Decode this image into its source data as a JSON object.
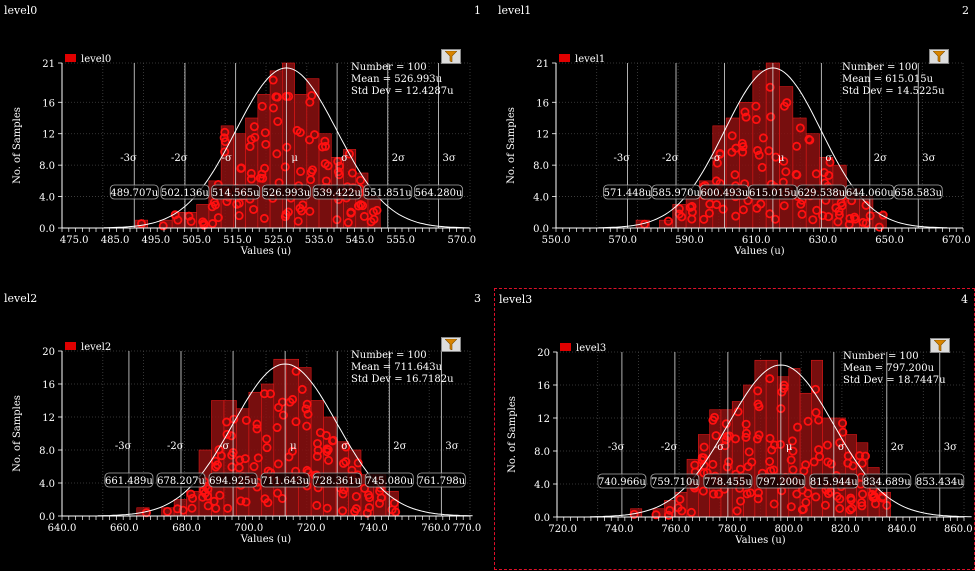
{
  "colors": {
    "background": "#000000",
    "bar_fill": "#8c1010",
    "bar_stroke": "#e01818",
    "marker": "#ff1010",
    "curve": "#ffffff",
    "legend": "#e00000",
    "selection": "#e0102a"
  },
  "panels": [
    {
      "title": "level0",
      "index": "1",
      "selected": false,
      "icon": "filter-icon"
    },
    {
      "title": "level1",
      "index": "2",
      "selected": false,
      "icon": "filter-icon"
    },
    {
      "title": "level2",
      "index": "3",
      "selected": false,
      "icon": "filter-icon"
    },
    {
      "title": "level3",
      "index": "4",
      "selected": true,
      "icon": "filter-icon"
    }
  ],
  "chart_data": [
    {
      "type": "bar",
      "title": "level0",
      "legend": "level0",
      "xlabel": "Values (u)",
      "ylabel": "No. of Samples",
      "xlim": [
        472.0,
        572.0
      ],
      "ylim": [
        0,
        21
      ],
      "xticks": [
        "475.0",
        "485.0",
        "495.0",
        "505.0",
        "515.0",
        "525.0",
        "535.0",
        "545.0",
        "555.0",
        "570.0"
      ],
      "xtick_values": [
        475,
        485,
        495,
        505,
        515,
        525,
        535,
        545,
        555,
        570
      ],
      "yticks": [
        "0.0",
        "4.0",
        "8.0",
        "12",
        "16",
        "21"
      ],
      "ytick_values": [
        0,
        4,
        8,
        12,
        16,
        21
      ],
      "stats": {
        "number": "Number = 100",
        "mean": "Mean = 526.993u",
        "std": "Std Dev = 12.4287u"
      },
      "mean": 526.993,
      "std": 12.4287,
      "sigma_labels": [
        "-3σ",
        "-2σ",
        "-σ",
        "μ",
        "σ",
        "2σ",
        "3σ"
      ],
      "sigma_values": [
        "489.707u",
        "502.136u",
        "514.565u",
        "526.993u",
        "539.422u",
        "551.851u",
        "564.280u"
      ],
      "bins": [
        {
          "x0": 490,
          "x1": 493,
          "count": 1
        },
        {
          "x0": 496,
          "x1": 499,
          "count": 1
        },
        {
          "x0": 499,
          "x1": 502,
          "count": 2
        },
        {
          "x0": 502,
          "x1": 505,
          "count": 2
        },
        {
          "x0": 505,
          "x1": 508,
          "count": 3
        },
        {
          "x0": 508,
          "x1": 511,
          "count": 6
        },
        {
          "x0": 511,
          "x1": 514,
          "count": 13
        },
        {
          "x0": 514,
          "x1": 517,
          "count": 12
        },
        {
          "x0": 517,
          "x1": 520,
          "count": 14
        },
        {
          "x0": 520,
          "x1": 523,
          "count": 17
        },
        {
          "x0": 523,
          "x1": 526,
          "count": 20
        },
        {
          "x0": 526,
          "x1": 529,
          "count": 21
        },
        {
          "x0": 529,
          "x1": 532,
          "count": 17
        },
        {
          "x0": 532,
          "x1": 535,
          "count": 19
        },
        {
          "x0": 535,
          "x1": 538,
          "count": 12
        },
        {
          "x0": 538,
          "x1": 541,
          "count": 9
        },
        {
          "x0": 541,
          "x1": 544,
          "count": 10
        },
        {
          "x0": 544,
          "x1": 547,
          "count": 7
        },
        {
          "x0": 547,
          "x1": 550,
          "count": 4
        }
      ]
    },
    {
      "type": "bar",
      "title": "level1",
      "legend": "level1",
      "xlabel": "Values (u)",
      "ylabel": "No. of Samples",
      "xlim": [
        550.0,
        672.0
      ],
      "ylim": [
        0,
        21
      ],
      "xticks": [
        "550.0",
        "570.0",
        "590.0",
        "610.0",
        "630.0",
        "650.0",
        "670.0"
      ],
      "xtick_values": [
        550,
        570,
        590,
        610,
        630,
        650,
        670
      ],
      "yticks": [
        "0.0",
        "4.0",
        "8.0",
        "12",
        "16",
        "21"
      ],
      "ytick_values": [
        0,
        4,
        8,
        12,
        16,
        21
      ],
      "stats": {
        "number": "Number = 100",
        "mean": "Mean = 615.015u",
        "std": "Std Dev = 14.5225u"
      },
      "mean": 615.015,
      "std": 14.5225,
      "sigma_labels": [
        "-3σ",
        "-2σ",
        "-σ",
        "μ",
        "σ",
        "2σ",
        "3σ"
      ],
      "sigma_values": [
        "571.448u",
        "585.970u",
        "600.493u",
        "615.015u",
        "629.538u",
        "644.060u",
        "658.583u"
      ],
      "bins": [
        {
          "x0": 574,
          "x1": 578,
          "count": 1
        },
        {
          "x0": 581,
          "x1": 585,
          "count": 1
        },
        {
          "x0": 585,
          "x1": 589,
          "count": 3
        },
        {
          "x0": 589,
          "x1": 593,
          "count": 4
        },
        {
          "x0": 593,
          "x1": 597,
          "count": 6
        },
        {
          "x0": 597,
          "x1": 601,
          "count": 13
        },
        {
          "x0": 601,
          "x1": 605,
          "count": 14
        },
        {
          "x0": 605,
          "x1": 609,
          "count": 16
        },
        {
          "x0": 609,
          "x1": 613,
          "count": 20
        },
        {
          "x0": 613,
          "x1": 617,
          "count": 21
        },
        {
          "x0": 617,
          "x1": 621,
          "count": 18
        },
        {
          "x0": 621,
          "x1": 625,
          "count": 14
        },
        {
          "x0": 625,
          "x1": 629,
          "count": 12
        },
        {
          "x0": 629,
          "x1": 633,
          "count": 9
        },
        {
          "x0": 633,
          "x1": 637,
          "count": 8
        },
        {
          "x0": 637,
          "x1": 641,
          "count": 5
        },
        {
          "x0": 641,
          "x1": 645,
          "count": 4
        },
        {
          "x0": 645,
          "x1": 649,
          "count": 2
        }
      ]
    },
    {
      "type": "bar",
      "title": "level2",
      "legend": "level2",
      "xlabel": "Values (u)",
      "ylabel": "No. of Samples",
      "xlim": [
        640.0,
        771.0
      ],
      "ylim": [
        0,
        20
      ],
      "xticks": [
        "640.0",
        "660.0",
        "680.0",
        "700.0",
        "720.0",
        "740.0",
        "760.0",
        "770.0"
      ],
      "xtick_values": [
        640,
        660,
        680,
        700,
        720,
        740,
        760,
        770
      ],
      "yticks": [
        "0.0",
        "4.0",
        "8.0",
        "12",
        "16",
        "20"
      ],
      "ytick_values": [
        0,
        4,
        8,
        12,
        16,
        20
      ],
      "stats": {
        "number": "Number = 100",
        "mean": "Mean = 711.643u",
        "std": "Std Dev = 16.7182u"
      },
      "mean": 711.643,
      "std": 16.7182,
      "sigma_labels": [
        "-3σ",
        "-2σ",
        "-σ",
        "μ",
        "σ",
        "2σ",
        "3σ"
      ],
      "sigma_values": [
        "661.489u",
        "678.207u",
        "694.925u",
        "711.643u",
        "728.361u",
        "745.080u",
        "761.798u"
      ],
      "bins": [
        {
          "x0": 664,
          "x1": 668,
          "count": 1
        },
        {
          "x0": 672,
          "x1": 676,
          "count": 1
        },
        {
          "x0": 676,
          "x1": 680,
          "count": 2
        },
        {
          "x0": 680,
          "x1": 684,
          "count": 3
        },
        {
          "x0": 684,
          "x1": 688,
          "count": 8
        },
        {
          "x0": 688,
          "x1": 692,
          "count": 14
        },
        {
          "x0": 692,
          "x1": 696,
          "count": 14
        },
        {
          "x0": 696,
          "x1": 700,
          "count": 13
        },
        {
          "x0": 700,
          "x1": 704,
          "count": 15
        },
        {
          "x0": 704,
          "x1": 708,
          "count": 16
        },
        {
          "x0": 708,
          "x1": 712,
          "count": 19
        },
        {
          "x0": 712,
          "x1": 716,
          "count": 19
        },
        {
          "x0": 716,
          "x1": 720,
          "count": 18
        },
        {
          "x0": 720,
          "x1": 724,
          "count": 14
        },
        {
          "x0": 724,
          "x1": 728,
          "count": 12
        },
        {
          "x0": 728,
          "x1": 732,
          "count": 9
        },
        {
          "x0": 732,
          "x1": 736,
          "count": 8
        },
        {
          "x0": 736,
          "x1": 740,
          "count": 5
        },
        {
          "x0": 740,
          "x1": 744,
          "count": 5
        },
        {
          "x0": 744,
          "x1": 748,
          "count": 3
        }
      ]
    },
    {
      "type": "bar",
      "title": "level3",
      "legend": "level3",
      "xlabel": "Values (u)",
      "ylabel": "No. of Samples",
      "xlim": [
        718.0,
        862.0
      ],
      "ylim": [
        0,
        20
      ],
      "xticks": [
        "720.0",
        "740.0",
        "760.0",
        "780.0",
        "800.0",
        "820.0",
        "840.0",
        "860.0"
      ],
      "xtick_values": [
        720,
        740,
        760,
        780,
        800,
        820,
        840,
        860
      ],
      "yticks": [
        "0.0",
        "4.0",
        "8.0",
        "12",
        "16",
        "20"
      ],
      "ytick_values": [
        0,
        4,
        8,
        12,
        16,
        20
      ],
      "stats": {
        "number": "Number = 100",
        "mean": "Mean = 797.200u",
        "std": "Std Dev = 18.7447u"
      },
      "mean": 797.2,
      "std": 18.7447,
      "sigma_labels": [
        "-3σ",
        "-2σ",
        "-σ",
        "μ",
        "σ",
        "2σ",
        "3σ"
      ],
      "sigma_values": [
        "740.966u",
        "759.710u",
        "778.455u",
        "797.200u",
        "815.944u",
        "834.689u",
        "853.434u"
      ],
      "bins": [
        {
          "x0": 744,
          "x1": 748,
          "count": 1
        },
        {
          "x0": 752,
          "x1": 756,
          "count": 1
        },
        {
          "x0": 756,
          "x1": 760,
          "count": 2
        },
        {
          "x0": 760,
          "x1": 764,
          "count": 3
        },
        {
          "x0": 764,
          "x1": 768,
          "count": 7
        },
        {
          "x0": 768,
          "x1": 772,
          "count": 10
        },
        {
          "x0": 772,
          "x1": 776,
          "count": 13
        },
        {
          "x0": 776,
          "x1": 780,
          "count": 13
        },
        {
          "x0": 780,
          "x1": 784,
          "count": 14
        },
        {
          "x0": 784,
          "x1": 788,
          "count": 16
        },
        {
          "x0": 788,
          "x1": 792,
          "count": 19
        },
        {
          "x0": 792,
          "x1": 796,
          "count": 19
        },
        {
          "x0": 796,
          "x1": 800,
          "count": 17
        },
        {
          "x0": 800,
          "x1": 804,
          "count": 18
        },
        {
          "x0": 804,
          "x1": 808,
          "count": 15
        },
        {
          "x0": 808,
          "x1": 812,
          "count": 19
        },
        {
          "x0": 812,
          "x1": 816,
          "count": 12
        },
        {
          "x0": 816,
          "x1": 820,
          "count": 12
        },
        {
          "x0": 820,
          "x1": 824,
          "count": 10
        },
        {
          "x0": 824,
          "x1": 828,
          "count": 9
        },
        {
          "x0": 828,
          "x1": 832,
          "count": 6
        },
        {
          "x0": 832,
          "x1": 836,
          "count": 3
        }
      ]
    }
  ]
}
